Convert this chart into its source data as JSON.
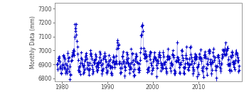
{
  "ylabel": "Monthly Data (mm)",
  "xlim": [
    1978.5,
    2019.5
  ],
  "ylim": [
    6780,
    7340
  ],
  "yticks": [
    6800,
    6900,
    7000,
    7100,
    7200,
    7300
  ],
  "xticks": [
    1980,
    1990,
    2000,
    2010
  ],
  "line_color": "#0000cc",
  "marker": "+",
  "markersize": 2.5,
  "linewidth": 0.6,
  "background_color": "#ffffff",
  "figsize": [
    3.5,
    1.4
  ],
  "dpi": 100
}
